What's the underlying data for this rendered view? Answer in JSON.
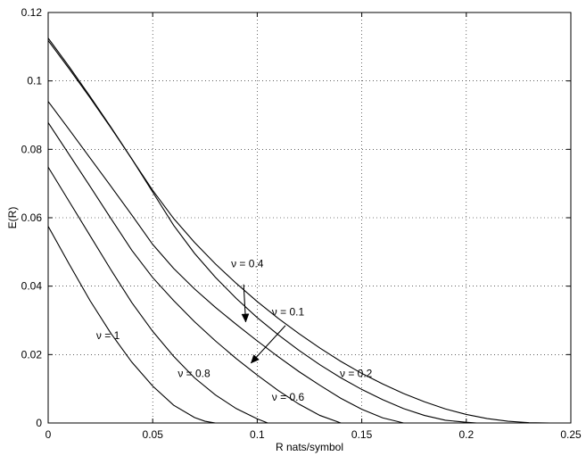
{
  "chart_data": {
    "type": "line",
    "xlabel": "R nats/symbol",
    "ylabel": "E(R)",
    "xlim": [
      0,
      0.25
    ],
    "ylim": [
      0,
      0.12
    ],
    "xticks": [
      0,
      0.05,
      0.1,
      0.15,
      0.2,
      0.25
    ],
    "xtick_labels": [
      "0",
      "0.05",
      "0.1",
      "0.15",
      "0.2",
      "0.25"
    ],
    "yticks": [
      0,
      0.02,
      0.04,
      0.06,
      0.08,
      0.1,
      0.12
    ],
    "ytick_labels": [
      "0",
      "0.02",
      "0.04",
      "0.06",
      "0.08",
      "0.1",
      "0.12"
    ],
    "grid": true,
    "series": [
      {
        "name": "ν = 1",
        "x": [
          0,
          0.01,
          0.02,
          0.03,
          0.04,
          0.05,
          0.06,
          0.07,
          0.075,
          0.08
        ],
        "y": [
          0.0575,
          0.0465,
          0.0358,
          0.0262,
          0.0178,
          0.0108,
          0.0052,
          0.0016,
          0.0005,
          0.0
        ]
      },
      {
        "name": "ν = 0.8",
        "x": [
          0,
          0.01,
          0.02,
          0.03,
          0.04,
          0.05,
          0.06,
          0.07,
          0.08,
          0.09,
          0.1,
          0.105
        ],
        "y": [
          0.0748,
          0.0648,
          0.0548,
          0.0448,
          0.0352,
          0.0268,
          0.0195,
          0.0132,
          0.0082,
          0.0042,
          0.0012,
          0.0
        ]
      },
      {
        "name": "ν = 0.6",
        "x": [
          0,
          0.01,
          0.02,
          0.03,
          0.04,
          0.05,
          0.06,
          0.07,
          0.08,
          0.09,
          0.1,
          0.11,
          0.12,
          0.13,
          0.14
        ],
        "y": [
          0.0878,
          0.0785,
          0.0692,
          0.0598,
          0.0505,
          0.0425,
          0.0358,
          0.0296,
          0.024,
          0.0188,
          0.014,
          0.0095,
          0.0055,
          0.0022,
          0.0
        ]
      },
      {
        "name": "ν = 0.1",
        "x": [
          0,
          0.01,
          0.02,
          0.03,
          0.04,
          0.05,
          0.06,
          0.07,
          0.08,
          0.09,
          0.1,
          0.11,
          0.12,
          0.13,
          0.14,
          0.15,
          0.16,
          0.17
        ],
        "y": [
          0.094,
          0.0858,
          0.0775,
          0.0692,
          0.0608,
          0.0522,
          0.0452,
          0.0392,
          0.0338,
          0.0288,
          0.024,
          0.0194,
          0.015,
          0.011,
          0.0072,
          0.004,
          0.0015,
          0.0
        ]
      },
      {
        "name": "ν = 0.2",
        "x": [
          0,
          0.01,
          0.02,
          0.03,
          0.04,
          0.05,
          0.06,
          0.07,
          0.08,
          0.09,
          0.1,
          0.11,
          0.12,
          0.13,
          0.14,
          0.15,
          0.16,
          0.17,
          0.18,
          0.19,
          0.2,
          0.205
        ],
        "y": [
          0.1125,
          0.1042,
          0.0955,
          0.0865,
          0.0772,
          0.0675,
          0.0578,
          0.0496,
          0.0426,
          0.0364,
          0.0308,
          0.0258,
          0.0212,
          0.017,
          0.0132,
          0.0098,
          0.0068,
          0.0042,
          0.0022,
          0.0008,
          0.0002,
          0.0
        ]
      },
      {
        "name": "ν = 0.4",
        "x": [
          0,
          0.01,
          0.02,
          0.03,
          0.04,
          0.05,
          0.06,
          0.07,
          0.08,
          0.09,
          0.1,
          0.11,
          0.12,
          0.13,
          0.14,
          0.15,
          0.16,
          0.17,
          0.18,
          0.19,
          0.2,
          0.21,
          0.22,
          0.23,
          0.24
        ],
        "y": [
          0.1118,
          0.1036,
          0.0951,
          0.0863,
          0.0772,
          0.068,
          0.0598,
          0.0528,
          0.0465,
          0.0408,
          0.0355,
          0.0306,
          0.0261,
          0.0219,
          0.018,
          0.0145,
          0.0114,
          0.0086,
          0.0062,
          0.0041,
          0.0025,
          0.0013,
          0.0005,
          0.0001,
          0.0
        ]
      }
    ],
    "annotations": [
      {
        "text": "ν = 0.4",
        "x": 0.0875,
        "y": 0.0455,
        "arrow_to": [
          0.0945,
          0.0295
        ],
        "arrow_from": [
          0.0935,
          0.0405
        ]
      },
      {
        "text": "ν = 0.1",
        "x": 0.107,
        "y": 0.0315,
        "arrow_to": [
          0.097,
          0.0175
        ],
        "arrow_from": [
          0.1135,
          0.0285
        ]
      },
      {
        "text": "ν = 1",
        "x": 0.023,
        "y": 0.0245
      },
      {
        "text": "ν = 0.8",
        "x": 0.062,
        "y": 0.0135
      },
      {
        "text": "ν = 0.6",
        "x": 0.107,
        "y": 0.0065
      },
      {
        "text": "ν = 0.2",
        "x": 0.1395,
        "y": 0.0135
      }
    ]
  }
}
